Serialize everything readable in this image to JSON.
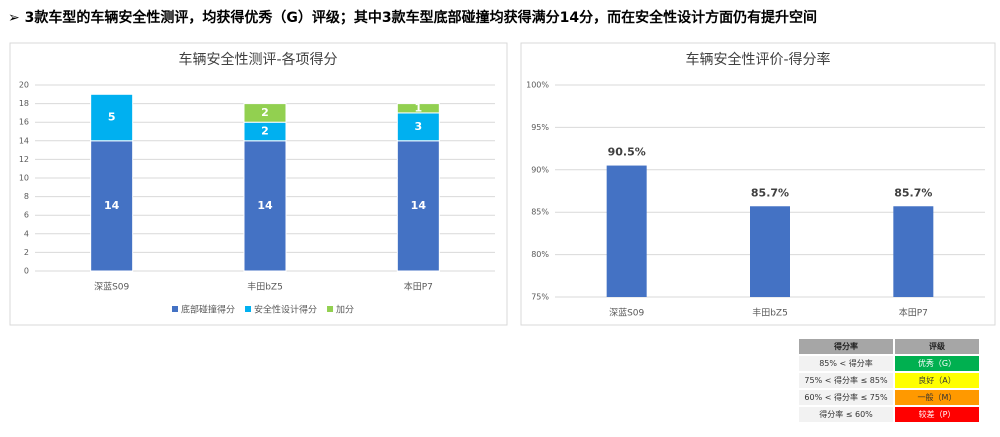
{
  "header": {
    "title": "3款车型的车辆安全性测评，均获得优秀（G）评级；其中3款车型底部碰撞均获得满分14分，而在安全性设计方面仍有提升空间"
  },
  "chart_data": [
    {
      "type": "stacked_bar",
      "title": "车辆安全性测评-各项得分",
      "categories": [
        "深蓝S09",
        "丰田bZ5",
        "本田P7"
      ],
      "series": [
        {
          "name": "底部碰撞得分",
          "color": "#4472c4",
          "values": [
            14,
            14,
            14
          ]
        },
        {
          "name": "安全性设计得分",
          "color": "#00b0f0",
          "values": [
            5,
            2,
            3
          ]
        },
        {
          "name": "加分",
          "color": "#92d050",
          "values": [
            null,
            2,
            1
          ]
        }
      ],
      "ylim": [
        0,
        20
      ],
      "yticks": [
        0,
        2,
        4,
        6,
        8,
        10,
        12,
        14,
        16,
        18,
        20
      ],
      "grid": true,
      "legend": "bottom"
    },
    {
      "type": "bar",
      "title": "车辆安全性评价-得分率",
      "categories": [
        "深蓝S09",
        "丰田bZ5",
        "本田P7"
      ],
      "values": [
        90.5,
        85.7,
        85.7
      ],
      "value_labels": [
        "90.5%",
        "85.7%",
        "85.7%"
      ],
      "color": "#4472c4",
      "ylim": [
        75,
        100
      ],
      "yticks": [
        {
          "value": 75,
          "label": "75%"
        },
        {
          "value": 80,
          "label": "80%"
        },
        {
          "value": 85,
          "label": "85%"
        },
        {
          "value": 90,
          "label": "90%"
        },
        {
          "value": 95,
          "label": "95%"
        },
        {
          "value": 100,
          "label": "100%"
        }
      ],
      "grid": true
    }
  ],
  "table": {
    "header": [
      "得分率",
      "评级"
    ],
    "rows": [
      [
        "85% < 得分率",
        "优秀（G）"
      ],
      [
        "75% < 得分率 ≤ 85%",
        "良好（A）"
      ],
      [
        "60% < 得分率 ≤ 75%",
        "一般（M）"
      ],
      [
        "得分率 ≤ 60%",
        "较差（P）"
      ]
    ]
  }
}
